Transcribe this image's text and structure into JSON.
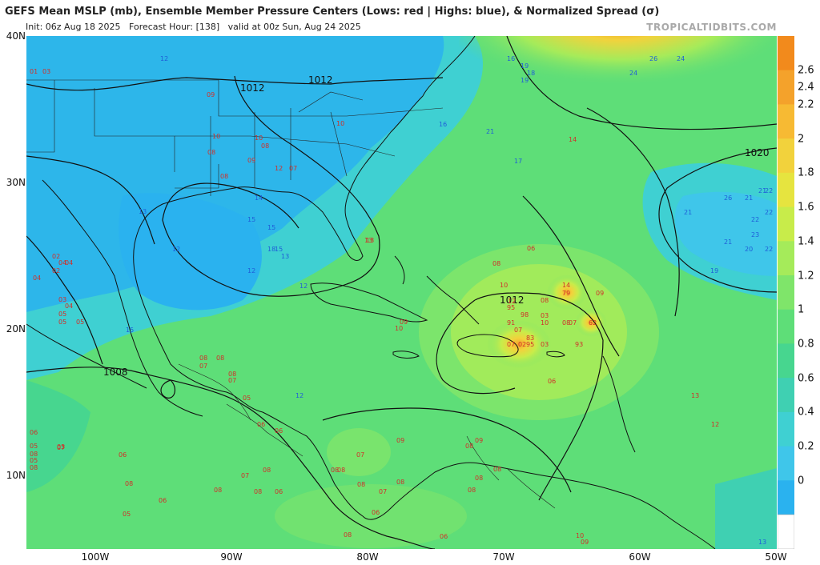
{
  "header": {
    "title": "GEFS Mean MSLP (mb), Ensemble Member Pressure Centers (Lows: red | Highs: blue), & Normalized Spread (σ)",
    "init": "Init: 06z Aug 18 2025",
    "forecast_hour": "Forecast Hour: [138]",
    "valid": "valid at 00z Sun, Aug 24 2025",
    "credit": "TROPICALTIDBITS.COM"
  },
  "axes": {
    "lat_labels": [
      "40N",
      "30N",
      "20N",
      "10N"
    ],
    "lon_labels": [
      "100W",
      "90W",
      "80W",
      "70W",
      "60W",
      "50W"
    ]
  },
  "colorbar": {
    "ticks": [
      "2.6",
      "2.4",
      "2.2",
      "2",
      "1.8",
      "1.6",
      "1.4",
      "1.2",
      "1",
      "0.8",
      "0.6",
      "0.4",
      "0.2",
      "0"
    ],
    "colors": [
      "#f28a1c",
      "#f4a22b",
      "#f7ba33",
      "#f2d23c",
      "#e6e43f",
      "#c8ec4a",
      "#a5eb5a",
      "#7fe56a",
      "#5ede78",
      "#47d68f",
      "#3fd0b2",
      "#3fd0d2",
      "#3fc6ea",
      "#2ab2ef"
    ]
  },
  "isobars": {
    "labels": [
      "1012",
      "1012",
      "1012",
      "1020",
      "1008"
    ]
  },
  "low_centers": [
    "01",
    "03",
    "09",
    "10",
    "10",
    "08",
    "10",
    "08",
    "08",
    "09",
    "12",
    "07",
    "13",
    "04",
    "02",
    "04",
    "04",
    "03",
    "04",
    "05",
    "05",
    "05",
    "02",
    "08",
    "08",
    "07",
    "08",
    "07",
    "06",
    "05",
    "05",
    "08",
    "08",
    "06",
    "07",
    "06",
    "08",
    "06",
    "08",
    "08",
    "07",
    "08",
    "06",
    "09",
    "07",
    "06",
    "08",
    "08",
    "06",
    "08",
    "08",
    "09",
    "08",
    "08",
    "07",
    "10",
    "09",
    "08",
    "06",
    "05",
    "05",
    "08",
    "05",
    "13",
    "06",
    "08",
    "10",
    "12",
    "95",
    "98",
    "91",
    "07",
    "07",
    "02",
    "03",
    "10",
    "14",
    "79",
    "09",
    "08",
    "07",
    "08",
    "62",
    "93",
    "95",
    "83",
    "03",
    "06",
    "14",
    "13",
    "12",
    "10",
    "09",
    "08"
  ],
  "high_centers": [
    "12",
    "12",
    "16",
    "19",
    "18",
    "19",
    "16",
    "21",
    "17",
    "14",
    "13",
    "15",
    "15",
    "18",
    "15",
    "13",
    "12",
    "12",
    "15",
    "26",
    "24",
    "24",
    "21",
    "26",
    "21",
    "22",
    "22",
    "22",
    "21",
    "21",
    "23",
    "20",
    "22",
    "19",
    "12",
    "13"
  ]
}
